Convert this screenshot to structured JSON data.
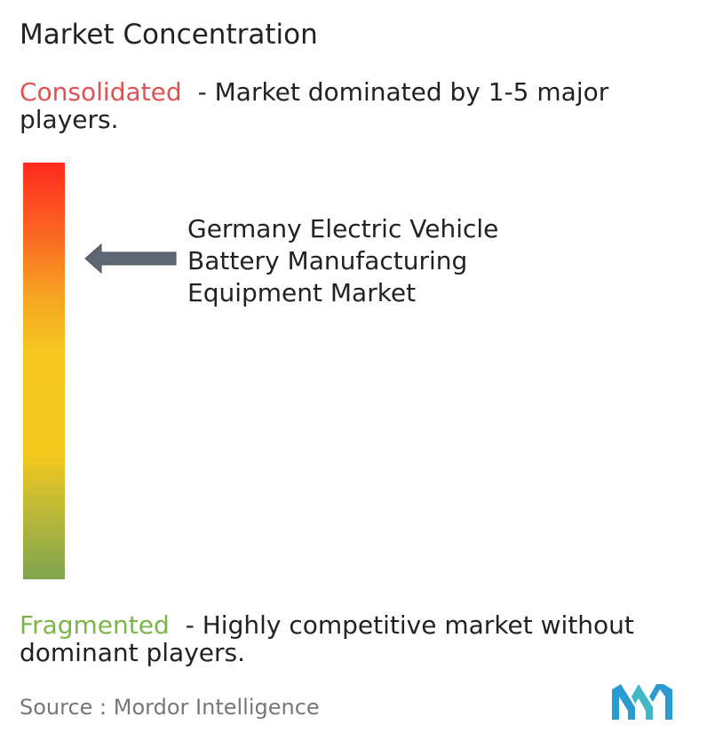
{
  "title": "Market Concentration",
  "consolidated": {
    "keyword": "Consolidated",
    "description": "- Market dominated by 1-5 major players.",
    "color": "#e05252"
  },
  "market": {
    "label": "Germany Electric Vehicle Battery Manufacturing Equipment Market",
    "concentration_level": 0.23
  },
  "fragmented": {
    "keyword": "Fragmented",
    "description": "- Highly competitive market without dominant players.",
    "color": "#7ab648"
  },
  "scale_colors": [
    "#ff2a1e",
    "#f6a424",
    "#f4c81d",
    "#7fa44e"
  ],
  "source": "Source :  Mordor Intelligence",
  "logo_icon": "mordor-intelligence-logo-icon"
}
